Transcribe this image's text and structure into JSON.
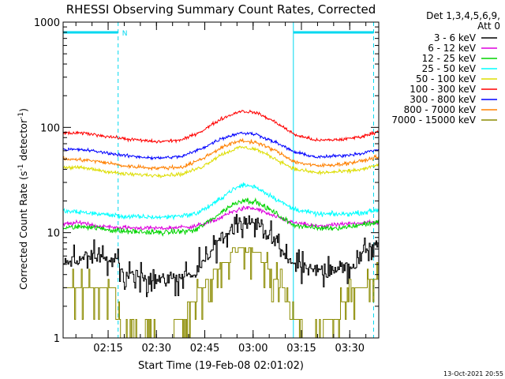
{
  "chart_data": {
    "type": "line",
    "title": "RHESSI Observing Summary Count Rates, Corrected",
    "xlabel": "Start Time (19-Feb-08 02:01:02)",
    "ylabel_parts": [
      "Corrected Count Rate (s",
      "-1",
      " detector",
      "-1",
      ")"
    ],
    "yscale": "log",
    "ylim": [
      1,
      1000
    ],
    "y_ticks": [
      1,
      10,
      100,
      1000
    ],
    "y_tick_labels": [
      "1",
      "10",
      "100",
      "1000"
    ],
    "xlim_minutes": [
      121.03,
      219
    ],
    "x_ticks": [
      {
        "t": 135,
        "label": "02:15"
      },
      {
        "t": 150,
        "label": "02:30"
      },
      {
        "t": 165,
        "label": "02:45"
      },
      {
        "t": 180,
        "label": "03:00"
      },
      {
        "t": 195,
        "label": "03:15"
      },
      {
        "t": 210,
        "label": "03:30"
      }
    ],
    "minor_step_minutes": 5,
    "legend_header": [
      "Det 1,3,4,5,6,9,",
      "Att 0"
    ],
    "series": [
      {
        "name": "3 - 6 keV",
        "color": "#000000",
        "stepped": true,
        "noise": 0.06,
        "points": [
          [
            121.03,
            5
          ],
          [
            129,
            6
          ],
          [
            138,
            5.2
          ],
          [
            139,
            4
          ],
          [
            152,
            3.6
          ],
          [
            162,
            4
          ],
          [
            166,
            6
          ],
          [
            170,
            9
          ],
          [
            176,
            13
          ],
          [
            180,
            13
          ],
          [
            184,
            10
          ],
          [
            188,
            7
          ],
          [
            192,
            5
          ],
          [
            198,
            4.4
          ],
          [
            206,
            4.6
          ],
          [
            212,
            5
          ],
          [
            214,
            6.5
          ],
          [
            216,
            7.5
          ],
          [
            219,
            8
          ]
        ]
      },
      {
        "name": "6 - 12 keV",
        "color": "#dd00dd",
        "stepped": false,
        "noise": 0.04,
        "points": [
          [
            121.03,
            12
          ],
          [
            127,
            12.5
          ],
          [
            132,
            11.5
          ],
          [
            138,
            11.2
          ],
          [
            152,
            11
          ],
          [
            162,
            11.5
          ],
          [
            168,
            13
          ],
          [
            173,
            15.5
          ],
          [
            177,
            17.2
          ],
          [
            181,
            16.8
          ],
          [
            186,
            14.5
          ],
          [
            192,
            12.5
          ],
          [
            200,
            11.5
          ],
          [
            208,
            12
          ],
          [
            214,
            12.5
          ],
          [
            219,
            12.5
          ]
        ]
      },
      {
        "name": "12 - 25 keV",
        "color": "#00d400",
        "stepped": false,
        "noise": 0.05,
        "points": [
          [
            121.03,
            11
          ],
          [
            128,
            11.5
          ],
          [
            134,
            10.8
          ],
          [
            140,
            10.3
          ],
          [
            152,
            10
          ],
          [
            162,
            10.5
          ],
          [
            168,
            14
          ],
          [
            173,
            18
          ],
          [
            177,
            20.5
          ],
          [
            181,
            19.5
          ],
          [
            186,
            16
          ],
          [
            192,
            12
          ],
          [
            200,
            11
          ],
          [
            208,
            11.2
          ],
          [
            214,
            12
          ],
          [
            219,
            12.5
          ]
        ]
      },
      {
        "name": "25 - 50 keV",
        "color": "#00ffff",
        "stepped": false,
        "noise": 0.045,
        "points": [
          [
            121.03,
            16
          ],
          [
            128,
            15.5
          ],
          [
            135,
            14.8
          ],
          [
            140,
            14.2
          ],
          [
            152,
            14
          ],
          [
            162,
            15
          ],
          [
            168,
            19
          ],
          [
            173,
            25
          ],
          [
            177,
            28.5
          ],
          [
            181,
            27
          ],
          [
            186,
            22
          ],
          [
            192,
            17
          ],
          [
            200,
            15
          ],
          [
            208,
            15
          ],
          [
            214,
            15.5
          ],
          [
            219,
            16.5
          ]
        ]
      },
      {
        "name": "50 - 100 keV",
        "color": "#dddd00",
        "stepped": false,
        "noise": 0.035,
        "points": [
          [
            121.03,
            42
          ],
          [
            128,
            41
          ],
          [
            135,
            38
          ],
          [
            140,
            36
          ],
          [
            150,
            35
          ],
          [
            158,
            36
          ],
          [
            164,
            42
          ],
          [
            170,
            55
          ],
          [
            176,
            65
          ],
          [
            181,
            62
          ],
          [
            187,
            50
          ],
          [
            193,
            40
          ],
          [
            200,
            37
          ],
          [
            208,
            38
          ],
          [
            214,
            40
          ],
          [
            219,
            44
          ]
        ]
      },
      {
        "name": "100 - 300 keV",
        "color": "#ff0000",
        "stepped": false,
        "noise": 0.03,
        "points": [
          [
            121.03,
            88
          ],
          [
            128,
            88
          ],
          [
            135,
            82
          ],
          [
            140,
            78
          ],
          [
            150,
            73
          ],
          [
            158,
            76
          ],
          [
            164,
            92
          ],
          [
            170,
            120
          ],
          [
            176,
            143
          ],
          [
            181,
            138
          ],
          [
            187,
            112
          ],
          [
            193,
            85
          ],
          [
            200,
            75
          ],
          [
            208,
            77
          ],
          [
            214,
            82
          ],
          [
            219,
            92
          ]
        ]
      },
      {
        "name": "300 - 800 keV",
        "color": "#0000ff",
        "stepped": false,
        "noise": 0.03,
        "points": [
          [
            121.03,
            62
          ],
          [
            128,
            61
          ],
          [
            135,
            57
          ],
          [
            140,
            54
          ],
          [
            150,
            51
          ],
          [
            158,
            53
          ],
          [
            164,
            63
          ],
          [
            170,
            78
          ],
          [
            176,
            89
          ],
          [
            181,
            86
          ],
          [
            187,
            72
          ],
          [
            193,
            58
          ],
          [
            200,
            52
          ],
          [
            208,
            54
          ],
          [
            214,
            57
          ],
          [
            219,
            62
          ]
        ]
      },
      {
        "name": "800 - 7000 keV",
        "color": "#ff8000",
        "stepped": false,
        "noise": 0.035,
        "points": [
          [
            121.03,
            50
          ],
          [
            128,
            49
          ],
          [
            135,
            46
          ],
          [
            140,
            43
          ],
          [
            150,
            41
          ],
          [
            158,
            42
          ],
          [
            164,
            50
          ],
          [
            170,
            64
          ],
          [
            176,
            75
          ],
          [
            181,
            72
          ],
          [
            187,
            60
          ],
          [
            193,
            47
          ],
          [
            200,
            43
          ],
          [
            208,
            45
          ],
          [
            214,
            48
          ],
          [
            219,
            53
          ]
        ]
      },
      {
        "name": "7000 - 15000 keV",
        "color": "#8b8b00",
        "stepped": true,
        "noise": 0.0,
        "points": [
          [
            121.03,
            3
          ],
          [
            138,
            2.8
          ],
          [
            139,
            1
          ],
          [
            152,
            1
          ],
          [
            158,
            1.5
          ],
          [
            162,
            2.5
          ],
          [
            166,
            3.5
          ],
          [
            170,
            5
          ],
          [
            176,
            7
          ],
          [
            181,
            6.5
          ],
          [
            185,
            4.5
          ],
          [
            189,
            3
          ],
          [
            192,
            1.5
          ],
          [
            198,
            1
          ],
          [
            205,
            1.5
          ],
          [
            209,
            2.2
          ],
          [
            212,
            3
          ],
          [
            219,
            3.6
          ]
        ]
      }
    ],
    "vertical_markers_solid_minutes": [
      121.03,
      192.5
    ],
    "vertical_markers_dashed_minutes": [
      138.1,
      217.4
    ],
    "top_bars": [
      {
        "from": 121.03,
        "to": 138.1
      },
      {
        "from": 192.5,
        "to": 217.4
      }
    ],
    "top_bar_label": "N",
    "timestamp": "13-Oct-2021 20:55"
  }
}
